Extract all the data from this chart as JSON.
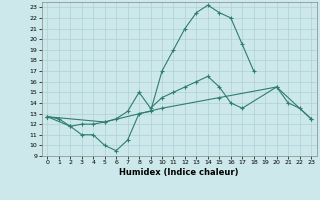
{
  "title": "",
  "xlabel": "Humidex (Indice chaleur)",
  "background_color": "#cce8ea",
  "grid_color": "#b0d0d4",
  "line_color": "#2e7d6e",
  "xlim": [
    -0.5,
    23.5
  ],
  "ylim": [
    9,
    23.5
  ],
  "yticks": [
    9,
    10,
    11,
    12,
    13,
    14,
    15,
    16,
    17,
    18,
    19,
    20,
    21,
    22,
    23
  ],
  "xticks": [
    0,
    1,
    2,
    3,
    4,
    5,
    6,
    7,
    8,
    9,
    10,
    11,
    12,
    13,
    14,
    15,
    16,
    17,
    18,
    19,
    20,
    21,
    22,
    23
  ],
  "curve1_x": [
    0,
    1,
    2,
    3,
    4,
    5,
    6,
    7,
    8,
    9,
    10,
    11,
    12,
    13,
    14,
    15,
    16,
    17,
    18
  ],
  "curve1_y": [
    12.7,
    12.5,
    11.8,
    11.0,
    11.0,
    10.0,
    9.5,
    10.5,
    13.0,
    13.2,
    17.0,
    19.0,
    21.0,
    22.5,
    23.2,
    22.5,
    22.0,
    19.5,
    17.0
  ],
  "curve2_x": [
    0,
    2,
    3,
    4,
    5,
    6,
    7,
    8,
    9,
    10,
    11,
    12,
    13,
    14,
    15,
    16,
    17,
    20,
    21,
    22,
    23
  ],
  "curve2_y": [
    12.7,
    11.8,
    12.0,
    12.0,
    12.2,
    12.5,
    13.2,
    15.0,
    13.5,
    14.5,
    15.0,
    15.5,
    16.0,
    16.5,
    15.5,
    14.0,
    13.5,
    15.5,
    14.0,
    13.5,
    12.5
  ],
  "curve3_x": [
    0,
    5,
    10,
    15,
    20,
    23
  ],
  "curve3_y": [
    12.7,
    12.2,
    13.5,
    14.5,
    15.5,
    12.5
  ]
}
